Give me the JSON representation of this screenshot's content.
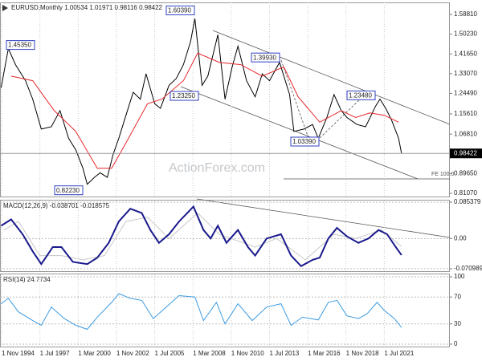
{
  "chart_data": [
    {
      "type": "line",
      "title": "EURUSD,Monthly 1.00534 1.01971 0.98116 0.98422",
      "watermark": "ActionForex.com",
      "note": "FE 100.0",
      "xlim": [
        1994.72,
        2026.07
      ],
      "ylim": [
        0.7968,
        1.6404
      ],
      "yticks": [
        {
          "value": 1.5881,
          "label": "1.58810"
        },
        {
          "value": 1.5023,
          "label": "1.50230"
        },
        {
          "value": 1.4165,
          "label": "1.41650"
        },
        {
          "value": 1.3307,
          "label": "1.33070"
        },
        {
          "value": 1.2449,
          "label": "1.24490"
        },
        {
          "value": 1.1561,
          "label": "1.15610"
        },
        {
          "value": 1.0681,
          "label": "1.06810"
        },
        {
          "value": 0.8965,
          "label": "0.89650"
        },
        {
          "value": 0.8107,
          "label": "0.81070"
        }
      ],
      "last": {
        "value": 0.98422,
        "label": "0.98422"
      },
      "annotations": [
        {
          "value": 1.4535,
          "label": "1.45350"
        },
        {
          "value": 1.6039,
          "label": "1.60390"
        },
        {
          "value": 1.3993,
          "label": "1.39930"
        },
        {
          "value": 1.2325,
          "label": "1.23250"
        },
        {
          "value": 1.2348,
          "label": "1.23480"
        },
        {
          "value": 1.0339,
          "label": "1.03390"
        },
        {
          "value": 0.8223,
          "label": "0.82230"
        }
      ],
      "series": [
        {
          "color": "#000000",
          "x": [
            1994.8,
            1995.3,
            1995.8,
            1996.5,
            1997.0,
            1997.6,
            1998.3,
            1998.9,
            1999.5,
            2000.0,
            2000.5,
            2000.8,
            2001.3,
            2001.7,
            2002.2,
            2002.6,
            2003.0,
            2003.5,
            2004.0,
            2004.5,
            2004.9,
            2005.5,
            2005.9,
            2006.5,
            2007.0,
            2007.5,
            2008.0,
            2008.3,
            2008.8,
            2009.2,
            2009.9,
            2010.4,
            2010.9,
            2011.3,
            2011.9,
            2012.5,
            2013.0,
            2013.5,
            2014.2,
            2014.9,
            2015.2,
            2015.9,
            2016.5,
            2016.9,
            2017.5,
            2018.0,
            2018.5,
            2018.9,
            2019.6,
            2020.2,
            2020.9,
            2021.2,
            2021.6,
            2022.0,
            2022.5,
            2022.7
          ],
          "values": [
            1.27,
            1.44,
            1.37,
            1.3,
            1.22,
            1.09,
            1.1,
            1.17,
            1.05,
            1.0,
            0.92,
            0.85,
            0.88,
            0.9,
            0.88,
            0.98,
            1.05,
            1.15,
            1.25,
            1.22,
            1.33,
            1.2,
            1.18,
            1.28,
            1.31,
            1.37,
            1.47,
            1.57,
            1.28,
            1.32,
            1.5,
            1.22,
            1.36,
            1.45,
            1.3,
            1.23,
            1.33,
            1.3,
            1.38,
            1.24,
            1.08,
            1.09,
            1.11,
            1.05,
            1.14,
            1.24,
            1.17,
            1.14,
            1.11,
            1.1,
            1.19,
            1.22,
            1.18,
            1.13,
            1.05,
            0.98422
          ]
        },
        {
          "color": "#e8262b",
          "x": [
            1995.5,
            1997.0,
            1998.5,
            2000.0,
            2001.5,
            2002.5,
            2003.5,
            2005.0,
            2006.0,
            2007.5,
            2008.5,
            2010.0,
            2011.5,
            2013.0,
            2014.5,
            2015.5,
            2017.0,
            2018.5,
            2019.5,
            2020.5,
            2021.5,
            2022.5
          ],
          "values": [
            1.32,
            1.3,
            1.17,
            1.08,
            0.92,
            0.92,
            1.03,
            1.2,
            1.22,
            1.3,
            1.42,
            1.38,
            1.37,
            1.32,
            1.36,
            1.23,
            1.12,
            1.17,
            1.14,
            1.16,
            1.15,
            1.12
          ]
        }
      ]
    },
    {
      "type": "line",
      "title": "MACD(12,26,9) -0.038701 -0.018575",
      "xlim": [
        1994.72,
        2026.07
      ],
      "ylim": [
        -0.0766,
        0.0892
      ],
      "yticks": [
        0.085379,
        {
          "value": 0,
          "label": "0.00"
        },
        -0.070989
      ],
      "series": [
        {
          "color": "#c8c8c8",
          "x": [
            1995.0,
            1996.0,
            1997.5,
            1999.0,
            2000.5,
            2002.0,
            2003.5,
            2005.0,
            2006.5,
            2008.5,
            2010.0,
            2012.5,
            2014.0,
            2016.0,
            2018.0,
            2019.5,
            2021.3,
            2022.7
          ],
          "values": [
            0.02,
            0.04,
            -0.04,
            -0.04,
            -0.05,
            -0.04,
            0.04,
            0.05,
            0.0,
            0.06,
            0.01,
            -0.02,
            0.0,
            -0.05,
            0.01,
            0.0,
            0.02,
            -0.018575
          ]
        },
        {
          "color": "#1a1a8c",
          "x": [
            1994.8,
            1995.5,
            1996.3,
            1997.0,
            1997.6,
            1998.4,
            1999.0,
            1999.8,
            2000.8,
            2001.5,
            2002.3,
            2003.0,
            2003.8,
            2004.6,
            2005.2,
            2005.8,
            2006.5,
            2007.2,
            2008.2,
            2008.9,
            2009.4,
            2009.9,
            2010.5,
            2011.3,
            2012.0,
            2012.5,
            2013.3,
            2014.3,
            2015.0,
            2015.7,
            2016.5,
            2017.0,
            2017.6,
            2018.2,
            2018.9,
            2019.7,
            2020.4,
            2021.1,
            2021.7,
            2022.3,
            2022.7
          ],
          "values": [
            0.03,
            0.045,
            0.01,
            -0.03,
            -0.06,
            -0.02,
            -0.02,
            -0.055,
            -0.06,
            -0.045,
            -0.01,
            0.04,
            0.07,
            0.06,
            0.02,
            -0.01,
            0.01,
            0.04,
            0.075,
            0.02,
            0.0,
            0.03,
            -0.01,
            0.02,
            -0.02,
            -0.04,
            0.0,
            0.01,
            -0.04,
            -0.065,
            -0.05,
            -0.045,
            0.0,
            0.025,
            0.005,
            -0.01,
            0.0,
            0.02,
            0.01,
            -0.02,
            -0.038701
          ]
        }
      ]
    },
    {
      "type": "line",
      "title": "RSI(14) 24.7734",
      "xlim": [
        1994.72,
        2026.07
      ],
      "ylim": [
        -3.6,
        103.6
      ],
      "yticks": [
        100,
        70,
        30,
        0
      ],
      "xticks": [
        {
          "value": 1994.83,
          "label": "1 Nov 1994"
        },
        {
          "value": 1997.5,
          "label": "1 Jul 1997"
        },
        {
          "value": 2000.17,
          "label": "1 Mar 2000"
        },
        {
          "value": 2002.83,
          "label": "1 Nov 2002"
        },
        {
          "value": 2005.5,
          "label": "1 Jul 2005"
        },
        {
          "value": 2008.17,
          "label": "1 Mar 2008"
        },
        {
          "value": 2010.83,
          "label": "1 Nov 2010"
        },
        {
          "value": 2013.5,
          "label": "1 Jul 2013"
        },
        {
          "value": 2016.17,
          "label": "1 Mar 2016"
        },
        {
          "value": 2018.83,
          "label": "1 Nov 2018"
        },
        {
          "value": 2021.5,
          "label": "1 Jul 2021"
        }
      ],
      "series": [
        {
          "color": "#3c9be0",
          "x": [
            1994.8,
            1995.3,
            1996.0,
            1997.0,
            1997.6,
            1998.3,
            1999.2,
            2000.0,
            2000.8,
            2001.5,
            2002.5,
            2003.0,
            2003.8,
            2004.6,
            2005.4,
            2006.3,
            2007.2,
            2008.3,
            2008.9,
            2009.8,
            2010.4,
            2011.3,
            2012.3,
            2013.3,
            2014.3,
            2015.0,
            2015.8,
            2016.9,
            2017.6,
            2018.2,
            2018.9,
            2019.7,
            2020.3,
            2021.0,
            2021.5,
            2022.2,
            2022.7
          ],
          "values": [
            60,
            68,
            48,
            35,
            28,
            55,
            38,
            28,
            22,
            40,
            62,
            75,
            68,
            65,
            38,
            55,
            72,
            70,
            35,
            62,
            30,
            60,
            35,
            55,
            60,
            28,
            40,
            36,
            62,
            65,
            42,
            38,
            45,
            62,
            50,
            38,
            24.7734
          ]
        }
      ]
    }
  ]
}
